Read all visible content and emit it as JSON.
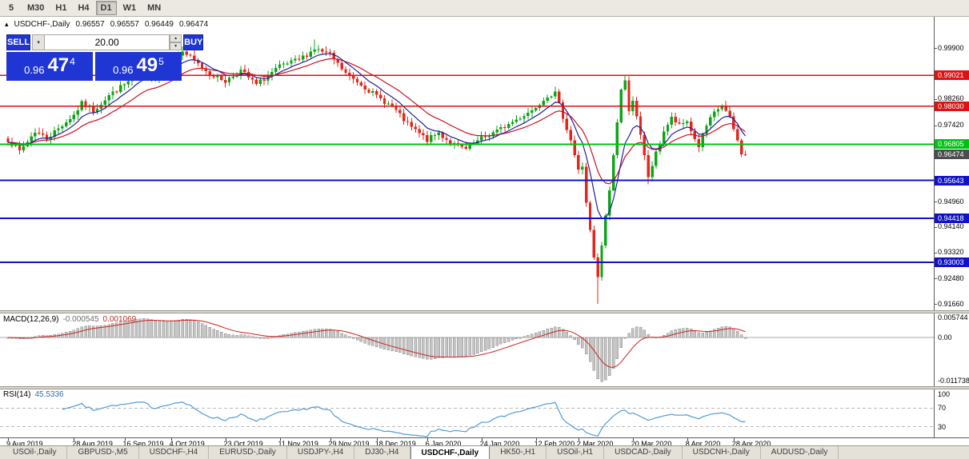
{
  "toolbar": {
    "timeframes": [
      "5",
      "M30",
      "H1",
      "H4",
      "D1",
      "W1",
      "MN"
    ],
    "active": "D1"
  },
  "chart": {
    "header": {
      "collapse_icon": "▴",
      "title": "USDCHF-,Daily",
      "open": "0.96557",
      "high": "0.96557",
      "low": "0.96449",
      "close": "0.96474"
    }
  },
  "trade": {
    "sell_label": "SELL",
    "buy_label": "BUY",
    "volume": "20.00",
    "dropdown_icon": "▾",
    "spin_up_icon": "▴",
    "spin_down_icon": "▾",
    "sell_price": {
      "prefix": "0.96",
      "big": "47",
      "sup": "4"
    },
    "buy_price": {
      "prefix": "0.96",
      "big": "49",
      "sup": "5"
    }
  },
  "macd": {
    "name": "MACD(12,26,9)",
    "value_main": "-0.000545",
    "value_signal": "0.001069",
    "axis": [
      {
        "label": "0.005744",
        "value": 0.005744
      },
      {
        "label": "0.00",
        "value": 0
      },
      {
        "label": "-0.011738",
        "value": -0.011738
      }
    ]
  },
  "rsi": {
    "name": "RSI(14)",
    "value": "45.5336",
    "axis": [
      {
        "label": "100",
        "value": 100
      },
      {
        "label": "70",
        "value": 70
      },
      {
        "label": "30",
        "value": 30
      }
    ],
    "levels": [
      70,
      30
    ]
  },
  "tabs": [
    {
      "label": "USOil-,Daily"
    },
    {
      "label": "GBPUSD-,M5"
    },
    {
      "label": "USDCHF-,H4"
    },
    {
      "label": "EURUSD-,Daily"
    },
    {
      "label": "USDJPY-,H4"
    },
    {
      "label": "DJ30-,H4"
    },
    {
      "label": "USDCHF-,Daily",
      "active": true
    },
    {
      "label": "HK50-,H1"
    },
    {
      "label": "USOil-,H1"
    },
    {
      "label": "USDCAD-,Daily"
    },
    {
      "label": "USDCNH-,Daily"
    },
    {
      "label": "AUDUSD-,Daily"
    }
  ],
  "chart_data": {
    "type": "candlestick",
    "symbol": "USDCHF-",
    "period": "Daily",
    "bar_count": 191,
    "current_ohlc": {
      "open": 0.96557,
      "high": 0.96557,
      "low": 0.96449,
      "close": 0.96474
    },
    "bid": 0.96474,
    "ask": 0.96495,
    "close_waypoints": [
      [
        0,
        0.9695
      ],
      [
        3,
        0.9658
      ],
      [
        7,
        0.9722
      ],
      [
        10,
        0.97
      ],
      [
        13,
        0.9732
      ],
      [
        17,
        0.9775
      ],
      [
        19,
        0.9812
      ],
      [
        22,
        0.9788
      ],
      [
        26,
        0.9838
      ],
      [
        30,
        0.9872
      ],
      [
        34,
        0.9912
      ],
      [
        38,
        0.9892
      ],
      [
        42,
        0.9944
      ],
      [
        45,
        0.998
      ],
      [
        48,
        0.9948
      ],
      [
        52,
        0.9908
      ],
      [
        56,
        0.9884
      ],
      [
        60,
        0.9918
      ],
      [
        64,
        0.9872
      ],
      [
        70,
        0.993
      ],
      [
        75,
        0.9952
      ],
      [
        79,
        0.9988
      ],
      [
        83,
        0.9968
      ],
      [
        87,
        0.9908
      ],
      [
        91,
        0.9874
      ],
      [
        95,
        0.9834
      ],
      [
        99,
        0.9802
      ],
      [
        103,
        0.9744
      ],
      [
        108,
        0.9694
      ],
      [
        111,
        0.9718
      ],
      [
        114,
        0.9684
      ],
      [
        118,
        0.9664
      ],
      [
        122,
        0.9698
      ],
      [
        127,
        0.973
      ],
      [
        131,
        0.976
      ],
      [
        135,
        0.979
      ],
      [
        139,
        0.9838
      ],
      [
        141,
        0.9844
      ],
      [
        143,
        0.977
      ],
      [
        145,
        0.9694
      ],
      [
        147,
        0.9596
      ],
      [
        148,
        0.961
      ],
      [
        149,
        0.9494
      ],
      [
        150,
        0.94
      ],
      [
        151,
        0.9312
      ],
      [
        152,
        0.9248
      ],
      [
        153,
        0.9354
      ],
      [
        154,
        0.9446
      ],
      [
        155,
        0.9534
      ],
      [
        156,
        0.9644
      ],
      [
        157,
        0.9754
      ],
      [
        158,
        0.9856
      ],
      [
        159,
        0.9882
      ],
      [
        160,
        0.9794
      ],
      [
        161,
        0.9824
      ],
      [
        163,
        0.9706
      ],
      [
        165,
        0.9576
      ],
      [
        167,
        0.965
      ],
      [
        169,
        0.9724
      ],
      [
        171,
        0.9764
      ],
      [
        173,
        0.974
      ],
      [
        175,
        0.9754
      ],
      [
        177,
        0.9696
      ],
      [
        178,
        0.9674
      ],
      [
        180,
        0.974
      ],
      [
        182,
        0.978
      ],
      [
        184,
        0.9806
      ],
      [
        186,
        0.9764
      ],
      [
        187,
        0.9728
      ],
      [
        188,
        0.969
      ],
      [
        189,
        0.9654
      ],
      [
        190,
        0.96474
      ]
    ],
    "wick_overrides": [
      {
        "i": 45,
        "high": 0.9996
      },
      {
        "i": 79,
        "high": 1.0018
      },
      {
        "i": 141,
        "high": 0.9866
      },
      {
        "i": 152,
        "low": 0.9166
      },
      {
        "i": 159,
        "high": 0.9901
      },
      {
        "i": 165,
        "low": 0.9552
      }
    ],
    "noise_seed": 7,
    "noise_amp": 0.0016,
    "wick_amp": 0.0014,
    "levels": [
      {
        "price": 0.99021,
        "label": "0.99021",
        "color": "#dd1111",
        "width": 1.2,
        "type": "resistance"
      },
      {
        "price": 0.9803,
        "label": "0.98030",
        "color": "#dd1111",
        "width": 1.2,
        "type": "resistance"
      },
      {
        "price": 0.96805,
        "label": "0.96805",
        "color": "#00c214",
        "width": 1.8,
        "type": "level"
      },
      {
        "price": 0.95643,
        "label": "0.95643",
        "color": "#1111cc",
        "width": 1.8,
        "type": "support"
      },
      {
        "price": 0.94418,
        "label": "0.94418",
        "color": "#1111cc",
        "width": 1.8,
        "type": "support"
      },
      {
        "price": 0.93003,
        "label": "0.93003",
        "color": "#1111cc",
        "width": 1.8,
        "type": "support"
      }
    ],
    "current_price": {
      "value": 0.96474,
      "label": "0.96474",
      "badge_color": "#4c4c4c"
    },
    "price_axis": [
      0.999,
      0.9826,
      0.9742,
      0.9496,
      0.9414,
      0.9332,
      0.9248,
      0.9166
    ],
    "dates": [
      {
        "label": "9 Aug 2019",
        "i": 0
      },
      {
        "label": "28 Aug 2019",
        "i": 17
      },
      {
        "label": "16 Sep 2019",
        "i": 30
      },
      {
        "label": "4 Oct 2019",
        "i": 42
      },
      {
        "label": "23 Oct 2019",
        "i": 56
      },
      {
        "label": "11 Nov 2019",
        "i": 70
      },
      {
        "label": "29 Nov 2019",
        "i": 83
      },
      {
        "label": "18 Dec 2019",
        "i": 95
      },
      {
        "label": "6 Jan 2020",
        "i": 108
      },
      {
        "label": "24 Jan 2020",
        "i": 122
      },
      {
        "label": "12 Feb 2020",
        "i": 136
      },
      {
        "label": "2 Mar 2020",
        "i": 147
      },
      {
        "label": "20 Mar 2020",
        "i": 161
      },
      {
        "label": "8 Apr 2020",
        "i": 175
      },
      {
        "label": "28 Apr 2020",
        "i": 187
      }
    ],
    "ma_periods": {
      "fast": 8,
      "slow": 18
    },
    "colors": {
      "candle_up": "#0ea418",
      "candle_down": "#e4261c",
      "ma_fast": "#20209a",
      "ma_slow": "#cc1122",
      "macd_hist": "#c4c4c4",
      "macd_hist_border": "#8f8f8f",
      "macd_signal": "#cc2222",
      "rsi_line": "#4f9bd6",
      "trade_blue": "#1f36d4"
    }
  }
}
